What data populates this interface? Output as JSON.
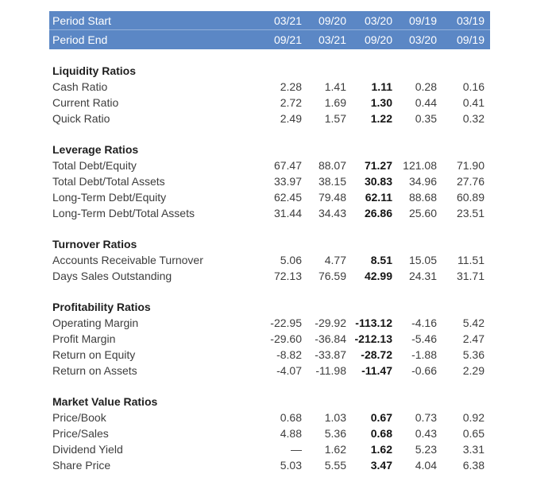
{
  "style": {
    "header_bg": "#5B87C5",
    "header_text_color": "#FFFFFF",
    "body_text_color": "#3D3D3D",
    "bold_value_column_index": 2
  },
  "period_header": {
    "rows": [
      {
        "label": "Period Start",
        "values": [
          "03/21",
          "09/20",
          "03/20",
          "09/19",
          "03/19"
        ]
      },
      {
        "label": "Period End",
        "values": [
          "09/21",
          "03/21",
          "09/20",
          "03/20",
          "09/19"
        ]
      }
    ]
  },
  "sections": [
    {
      "title": "Liquidity Ratios",
      "rows": [
        {
          "label": "Cash Ratio",
          "values": [
            "2.28",
            "1.41",
            "1.11",
            "0.28",
            "0.16"
          ]
        },
        {
          "label": "Current Ratio",
          "values": [
            "2.72",
            "1.69",
            "1.30",
            "0.44",
            "0.41"
          ]
        },
        {
          "label": "Quick Ratio",
          "values": [
            "2.49",
            "1.57",
            "1.22",
            "0.35",
            "0.32"
          ]
        }
      ]
    },
    {
      "title": "Leverage Ratios",
      "rows": [
        {
          "label": "Total Debt/Equity",
          "values": [
            "67.47",
            "88.07",
            "71.27",
            "121.08",
            "71.90"
          ]
        },
        {
          "label": "Total Debt/Total Assets",
          "values": [
            "33.97",
            "38.15",
            "30.83",
            "34.96",
            "27.76"
          ]
        },
        {
          "label": "Long-Term Debt/Equity",
          "values": [
            "62.45",
            "79.48",
            "62.11",
            "88.68",
            "60.89"
          ]
        },
        {
          "label": "Long-Term Debt/Total Assets",
          "values": [
            "31.44",
            "34.43",
            "26.86",
            "25.60",
            "23.51"
          ]
        }
      ]
    },
    {
      "title": "Turnover Ratios",
      "rows": [
        {
          "label": "Accounts Receivable Turnover",
          "values": [
            "5.06",
            "4.77",
            "8.51",
            "15.05",
            "11.51"
          ]
        },
        {
          "label": "Days Sales Outstanding",
          "values": [
            "72.13",
            "76.59",
            "42.99",
            "24.31",
            "31.71"
          ]
        }
      ]
    },
    {
      "title": "Profitability Ratios",
      "rows": [
        {
          "label": "Operating Margin",
          "values": [
            "-22.95",
            "-29.92",
            "-113.12",
            "-4.16",
            "5.42"
          ]
        },
        {
          "label": "Profit Margin",
          "values": [
            "-29.60",
            "-36.84",
            "-212.13",
            "-5.46",
            "2.47"
          ]
        },
        {
          "label": "Return on Equity",
          "values": [
            "-8.82",
            "-33.87",
            "-28.72",
            "-1.88",
            "5.36"
          ]
        },
        {
          "label": "Return on Assets",
          "values": [
            "-4.07",
            "-11.98",
            "-11.47",
            "-0.66",
            "2.29"
          ]
        }
      ]
    },
    {
      "title": "Market Value Ratios",
      "rows": [
        {
          "label": "Price/Book",
          "values": [
            "0.68",
            "1.03",
            "0.67",
            "0.73",
            "0.92"
          ]
        },
        {
          "label": "Price/Sales",
          "values": [
            "4.88",
            "5.36",
            "0.68",
            "0.43",
            "0.65"
          ]
        },
        {
          "label": "Dividend Yield",
          "values": [
            "—",
            "1.62",
            "1.62",
            "5.23",
            "3.31"
          ]
        },
        {
          "label": "Share Price",
          "values": [
            "5.03",
            "5.55",
            "3.47",
            "4.04",
            "6.38"
          ]
        }
      ]
    }
  ]
}
